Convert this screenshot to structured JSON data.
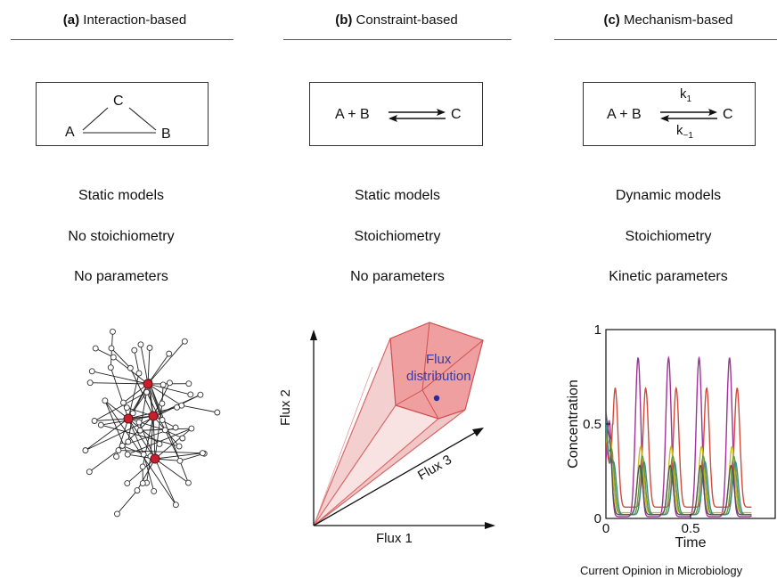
{
  "panels": [
    {
      "letter": "(a)",
      "title": "Interaction-based",
      "scheme": {
        "node_a": "A",
        "node_b": "B",
        "node_c": "C"
      },
      "properties": [
        "Static models",
        "No stoichiometry",
        "No parameters"
      ]
    },
    {
      "letter": "(b)",
      "title": "Constraint-based",
      "scheme": {
        "left": "A + B",
        "right": "C"
      },
      "properties": [
        "Static models",
        "Stoichiometry",
        "No parameters"
      ],
      "flux_plot": {
        "axis_x": "Flux 1",
        "axis_y": "Flux 2",
        "axis_z": "Flux 3",
        "annotation_line1": "Flux",
        "annotation_line2": "distribution"
      }
    },
    {
      "letter": "(c)",
      "title": "Mechanism-based",
      "scheme": {
        "left": "A + B",
        "right": "C",
        "k_forward": "k",
        "k_forward_sub": "1",
        "k_reverse": "k",
        "k_reverse_sub": "−1"
      },
      "properties": [
        "Dynamic models",
        "Stoichiometry",
        "Kinetic parameters"
      ]
    }
  ],
  "chart_data": {
    "type": "line",
    "xlabel": "Time",
    "ylabel": "Concentration",
    "xlim": [
      0,
      1
    ],
    "ylim": [
      0,
      1
    ],
    "x_ticks": [
      "0",
      "0.5"
    ],
    "y_ticks": [
      "0",
      "0.5",
      "1"
    ],
    "period": 0.18,
    "series": [
      {
        "color": "#a0309a",
        "peak": 0.85,
        "trough": 0.01,
        "phase": 0.19
      },
      {
        "color": "#d24a3a",
        "peak": 0.69,
        "trough": 0.06,
        "phase": 0.235
      },
      {
        "color": "#c8b820",
        "peak": 0.38,
        "trough": 0.03,
        "phase": 0.205
      },
      {
        "color": "#6a9a3a",
        "peak": 0.33,
        "trough": 0.02,
        "phase": 0.215
      },
      {
        "color": "#3a8a8a",
        "peak": 0.3,
        "trough": 0.02,
        "phase": 0.225
      },
      {
        "color": "#555555",
        "peak": 0.28,
        "trough": 0.02,
        "phase": 0.2
      }
    ]
  },
  "footer": "Current Opinion in Microbiology"
}
